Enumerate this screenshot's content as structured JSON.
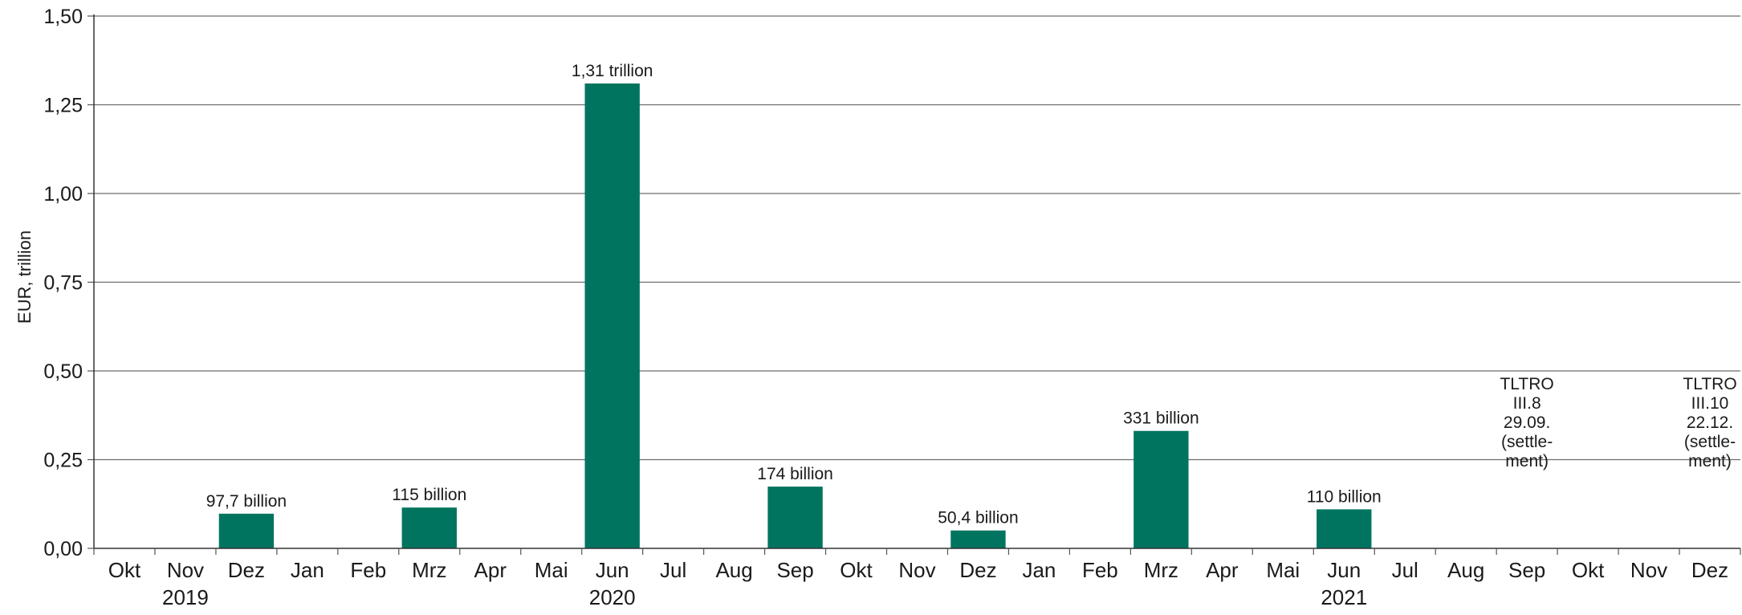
{
  "chart_data": {
    "type": "bar",
    "title": "",
    "ylabel": "EUR, trillion",
    "xlabel": "",
    "ylim": [
      0,
      1.5
    ],
    "yticks": [
      "0,00",
      "0,25",
      "0,50",
      "0,75",
      "1,00",
      "1,25",
      "1,50"
    ],
    "grid": true,
    "color": "#00745f",
    "categories": [
      "Okt",
      "Nov",
      "Dez",
      "Jan",
      "Feb",
      "Mrz",
      "Apr",
      "Mai",
      "Jun",
      "Jul",
      "Aug",
      "Sep",
      "Okt",
      "Nov",
      "Dez",
      "Jan",
      "Feb",
      "Mrz",
      "Apr",
      "Mai",
      "Jun",
      "Jul",
      "Aug",
      "Sep",
      "Okt",
      "Nov",
      "Dez"
    ],
    "values": [
      0,
      0,
      0.0977,
      0,
      0,
      0.115,
      0,
      0,
      1.31,
      0,
      0,
      0.174,
      0,
      0,
      0.0504,
      0,
      0,
      0.331,
      0,
      0,
      0.11,
      0,
      0,
      0,
      0,
      0,
      0
    ],
    "data_labels": [
      "",
      "",
      "97,7 billion",
      "",
      "",
      "115 billion",
      "",
      "",
      "1,31 trillion",
      "",
      "",
      "174 billion",
      "",
      "",
      "50,4 billion",
      "",
      "",
      "331 billion",
      "",
      "",
      "110 billion",
      "",
      "",
      "",
      "",
      "",
      ""
    ],
    "years": [
      {
        "label": "2019",
        "category_index": 1
      },
      {
        "label": "2020",
        "category_index": 8
      },
      {
        "label": "2021",
        "category_index": 20
      }
    ],
    "annotations": [
      {
        "category_index": 23,
        "lines": [
          "TLTRO",
          "III.8",
          "29.09.",
          "(settle-",
          "ment)"
        ]
      },
      {
        "category_index": 26,
        "lines": [
          "TLTRO",
          "III.10",
          "22.12.",
          "(settle-",
          "ment)"
        ]
      }
    ]
  }
}
